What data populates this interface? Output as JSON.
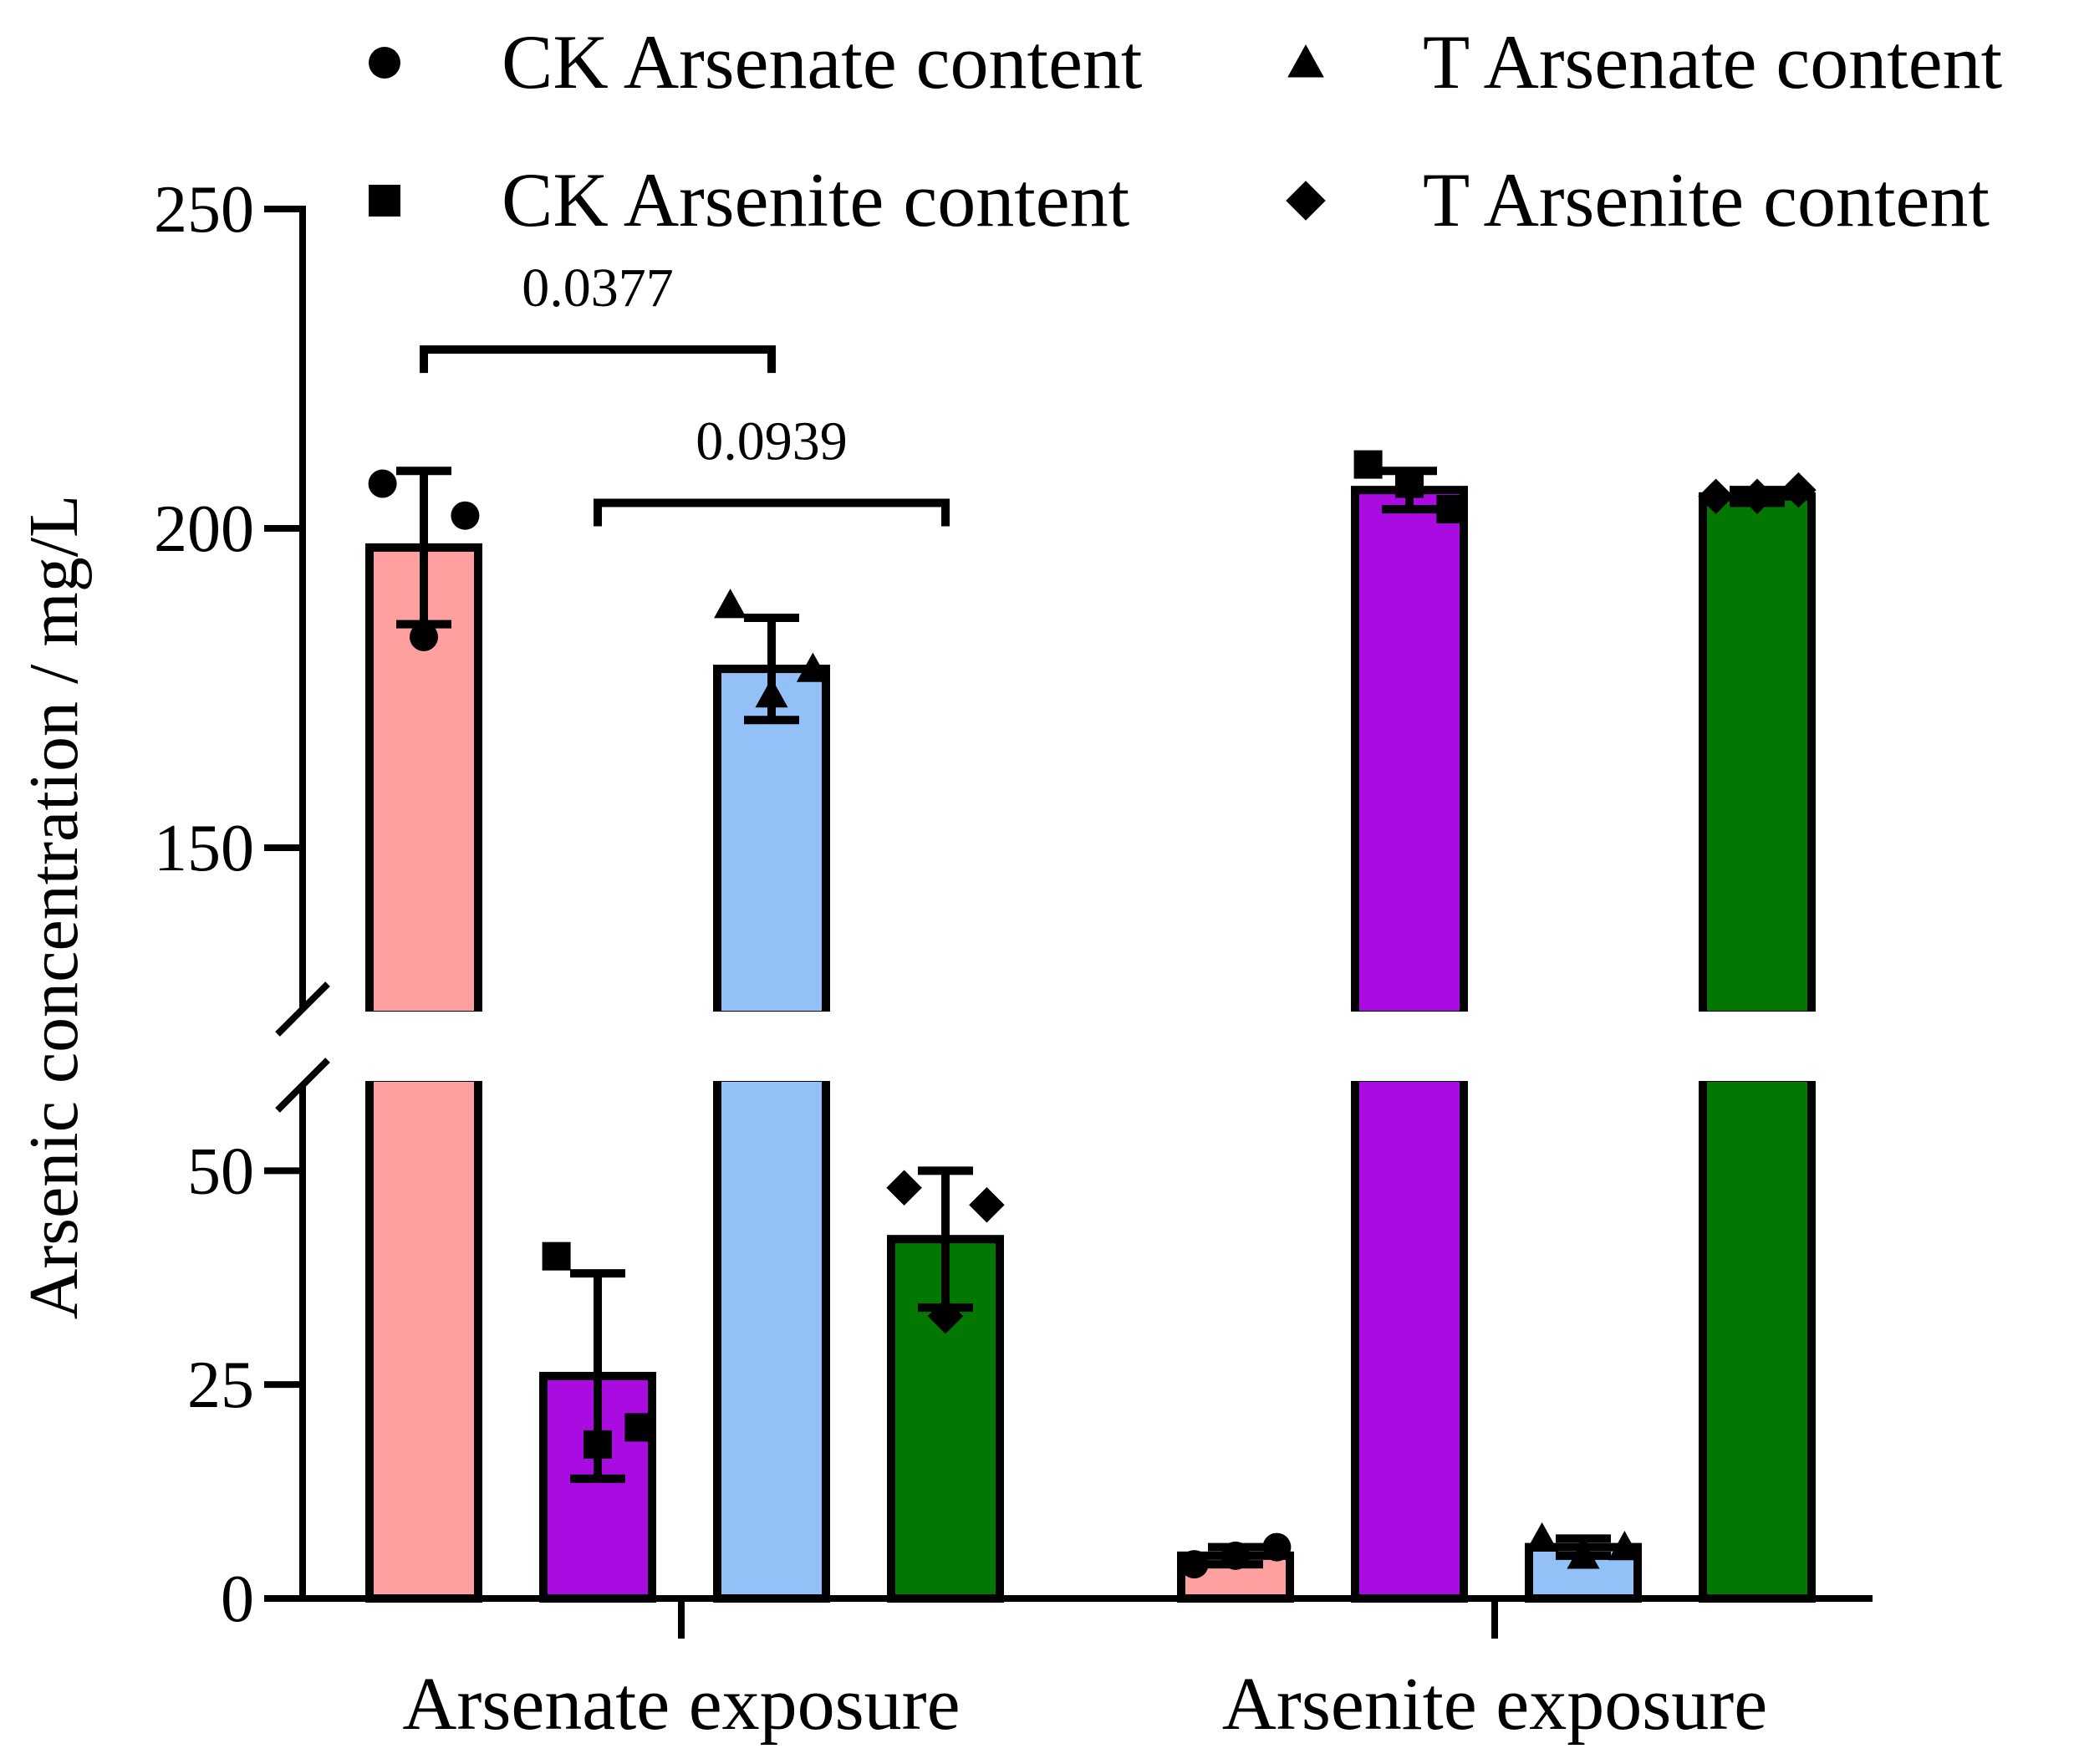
{
  "chart_data": {
    "type": "bar",
    "title": "",
    "xlabel": "",
    "ylabel": "Arsenic concentration / mg/L",
    "categories": [
      "Arsenate exposure",
      "Arsenite exposure"
    ],
    "axis_break": [
      60,
      125
    ],
    "ylim_lower": [
      0,
      60
    ],
    "ylim_upper": [
      125,
      250
    ],
    "yticks": [
      0,
      25,
      50,
      150,
      200,
      250
    ],
    "legend_position": "top",
    "grid": false,
    "series": [
      {
        "name": "CK Arsenate content",
        "marker": "circle",
        "color": "#FFA0A0",
        "values": [
          197,
          5
        ],
        "errors": [
          12,
          1
        ],
        "points": [
          [
            207,
            202,
            183
          ],
          [
            4,
            6,
            5
          ]
        ]
      },
      {
        "name": "CK Arsenite content",
        "marker": "square",
        "color": "#AA0BE0",
        "values": [
          26,
          206
        ],
        "errors": [
          12,
          3
        ],
        "points": [
          [
            40,
            20,
            18
          ],
          [
            210,
            203,
            207
          ]
        ]
      },
      {
        "name": "T Arsenate content",
        "marker": "triangle",
        "color": "#94C0F8",
        "values": [
          178,
          6
        ],
        "errors": [
          8,
          1
        ],
        "points": [
          [
            188,
            178,
            174
          ],
          [
            7,
            6,
            5
          ]
        ]
      },
      {
        "name": "T Arsenite content",
        "marker": "diamond",
        "color": "#027702",
        "values": [
          42,
          205
        ],
        "errors": [
          8,
          1
        ],
        "points": [
          [
            48,
            46,
            33
          ],
          [
            205,
            206,
            205
          ]
        ]
      }
    ],
    "annotations": [
      {
        "label": "0.0377",
        "from_category": 0,
        "from_series": 0,
        "to_category": 0,
        "to_series": 2,
        "y": 228
      },
      {
        "label": "0.0939",
        "from_category": 0,
        "from_series": 1,
        "to_category": 0,
        "to_series": 3,
        "y": 204
      }
    ]
  }
}
